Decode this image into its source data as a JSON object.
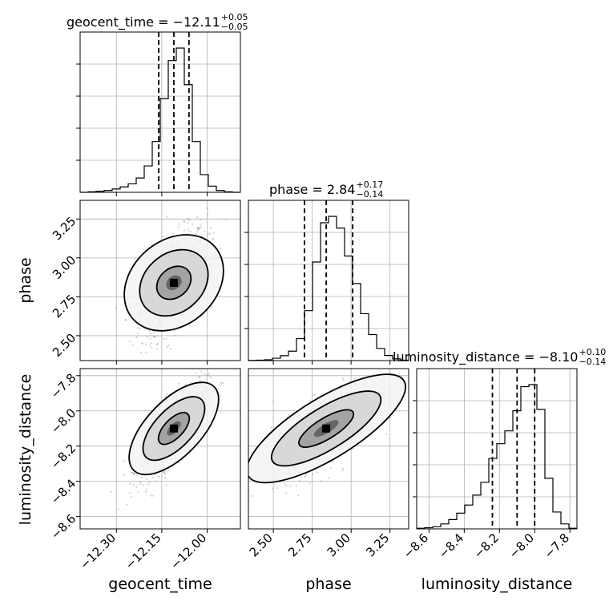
{
  "chart_data": {
    "type": "corner",
    "parameters": [
      "geocent_time",
      "phase",
      "luminosity_distance"
    ],
    "panel_titles": [
      {
        "param": "geocent_time",
        "text": "geocent_time = −12.11",
        "plus": "+0.05",
        "minus": "−0.05",
        "median": -12.11,
        "plus_err": 0.05,
        "minus_err": 0.05
      },
      {
        "param": "phase",
        "text": "phase = 2.84",
        "plus": "+0.17",
        "minus": "−0.14",
        "median": 2.84,
        "plus_err": 0.17,
        "minus_err": 0.14
      },
      {
        "param": "luminosity_distance",
        "text": "luminosity_distance = −8.10",
        "plus": "+0.10",
        "minus": "−0.14",
        "median": -8.1,
        "plus_err": 0.1,
        "minus_err": 0.14
      }
    ],
    "ranges": {
      "geocent_time": [
        -12.42,
        -11.89
      ],
      "phase": [
        2.34,
        3.37
      ],
      "luminosity_distance": [
        -8.67,
        -7.76
      ]
    },
    "ticks": {
      "geocent_time": {
        "values": [
          -12.3,
          -12.15,
          -12.0
        ],
        "labels": [
          "−12.30",
          "−12.15",
          "−12.00"
        ]
      },
      "phase": {
        "values": [
          2.5,
          2.75,
          3.0,
          3.25
        ],
        "labels": [
          "2.50",
          "2.75",
          "3.00",
          "3.25"
        ]
      },
      "luminosity_distance_x": {
        "values": [
          -8.6,
          -8.4,
          -8.2,
          -8.0,
          -7.8
        ],
        "labels": [
          "−8.6",
          "−8.4",
          "−8.2",
          "−8.0",
          "−7.8"
        ]
      },
      "luminosity_distance_y": {
        "values": [
          -8.6,
          -8.4,
          -8.2,
          -8.0,
          -7.8
        ],
        "labels": [
          "−8.6",
          "−8.4",
          "−8.2",
          "−8.0",
          "−7.8"
        ]
      }
    },
    "quantile_lines": {
      "geocent_time": [
        -12.16,
        -12.11,
        -12.06
      ],
      "phase": [
        2.7,
        2.84,
        3.01
      ],
      "luminosity_distance": [
        -8.24,
        -8.1,
        -8.0
      ]
    },
    "histograms": {
      "geocent_time": {
        "bin_edges": [
          -12.42,
          -12.3935,
          -12.367,
          -12.3405,
          -12.314,
          -12.2875,
          -12.261,
          -12.2345,
          -12.208,
          -12.1815,
          -12.155,
          -12.1285,
          -12.102,
          -12.0755,
          -12.049,
          -12.0225,
          -11.996,
          -11.9695,
          -11.943,
          -11.9165,
          -11.89
        ],
        "counts": [
          0,
          2,
          4,
          7,
          13,
          21,
          33,
          56,
          103,
          198,
          366,
          514,
          563,
          420,
          198,
          69,
          24,
          7,
          2,
          0
        ]
      },
      "phase": {
        "bin_edges": [
          2.34,
          2.3915,
          2.443,
          2.4945,
          2.546,
          2.5975,
          2.649,
          2.7005,
          2.752,
          2.8035,
          2.855,
          2.9065,
          2.958,
          3.0095,
          3.061,
          3.1125,
          3.164,
          3.2155,
          3.267,
          3.3185,
          3.37
        ],
        "counts": [
          1,
          2,
          4,
          11,
          23,
          44,
          103,
          234,
          462,
          646,
          676,
          621,
          490,
          361,
          220,
          122,
          57,
          24,
          8,
          2
        ]
      },
      "luminosity_distance": {
        "bin_edges": [
          -8.67,
          -8.6245,
          -8.579,
          -8.5335,
          -8.488,
          -8.4425,
          -8.397,
          -8.3515,
          -8.306,
          -8.2605,
          -8.215,
          -8.1695,
          -8.124,
          -8.0785,
          -8.033,
          -7.9875,
          -7.942,
          -7.8965,
          -7.851,
          -7.8055,
          -7.76
        ],
        "counts": [
          2,
          4,
          7,
          17,
          32,
          54,
          82,
          116,
          160,
          242,
          293,
          337,
          406,
          489,
          496,
          411,
          174,
          58,
          17,
          2
        ]
      }
    },
    "contour_levels": [
      "39%",
      "86%",
      "99%"
    ],
    "grid": true
  }
}
